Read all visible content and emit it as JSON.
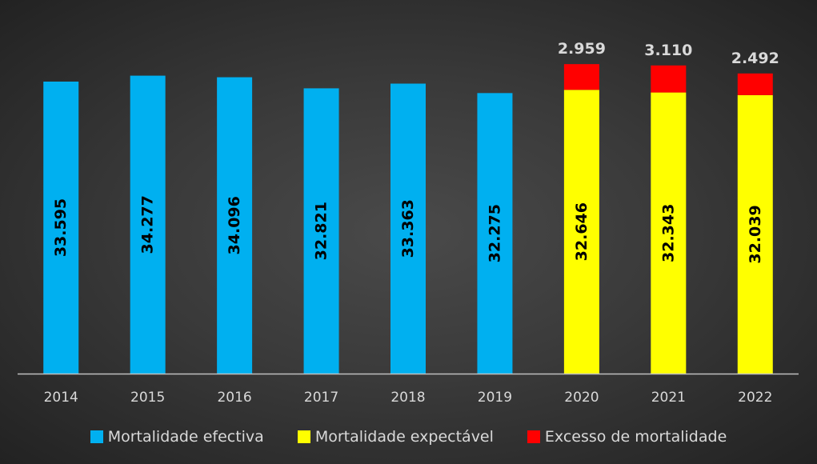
{
  "colors": {
    "efectiva": "#00b0f0",
    "expectavel": "#ffff00",
    "excesso": "#ff0000",
    "text": "#d9d9d9",
    "axis": "#bfbfbf"
  },
  "legend": [
    {
      "label": "Mortalidade efectiva",
      "color": "#00b0f0"
    },
    {
      "label": "Mortalidade expectável",
      "color": "#ffff00"
    },
    {
      "label": "Excesso de mortalidade",
      "color": "#ff0000"
    }
  ],
  "chart_data": {
    "type": "bar",
    "stacked": true,
    "categories": [
      "2014",
      "2015",
      "2016",
      "2017",
      "2018",
      "2019",
      "2020",
      "2021",
      "2022"
    ],
    "series": [
      {
        "name": "Mortalidade efectiva",
        "values": [
          33595,
          34277,
          34096,
          32821,
          33363,
          32275,
          null,
          null,
          null
        ],
        "labels": [
          "33.595",
          "34.277",
          "34.096",
          "32.821",
          "33.363",
          "32.275",
          "",
          "",
          ""
        ]
      },
      {
        "name": "Mortalidade expectável",
        "values": [
          null,
          null,
          null,
          null,
          null,
          null,
          32646,
          32343,
          32039
        ],
        "labels": [
          "",
          "",
          "",
          "",
          "",
          "",
          "32.646",
          "32.343",
          "32.039"
        ]
      },
      {
        "name": "Excesso de mortalidade",
        "values": [
          null,
          null,
          null,
          null,
          null,
          null,
          2959,
          3110,
          2492
        ],
        "labels": [
          "",
          "",
          "",
          "",
          "",
          "",
          "2.959",
          "3.110",
          "2.492"
        ]
      }
    ],
    "ylim": [
      0,
      36000
    ],
    "grid": false,
    "legend_position": "bottom"
  }
}
